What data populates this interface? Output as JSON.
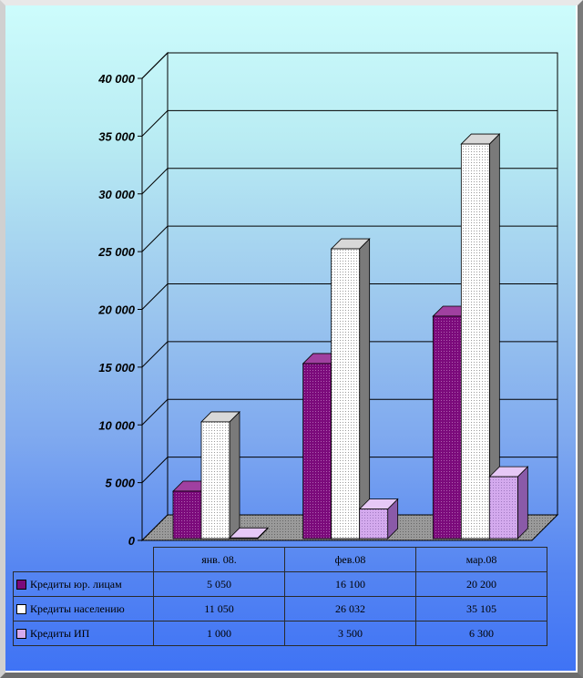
{
  "chart_data": {
    "type": "bar",
    "categories": [
      "янв. 08.",
      "фев.08",
      "мар.08"
    ],
    "series": [
      {
        "name": "Кредиты юр. лицам",
        "values": [
          5050,
          16100,
          20200
        ],
        "labels": [
          "5 050",
          "16 100",
          "20 200"
        ],
        "color": "#7b0a7b"
      },
      {
        "name": "Кредиты населению",
        "values": [
          11050,
          26032,
          35105
        ],
        "labels": [
          "11 050",
          "26 032",
          "35 105"
        ],
        "color": "#ffffff"
      },
      {
        "name": "Кредиты ИП",
        "values": [
          1000,
          3500,
          6300
        ],
        "labels": [
          "1 000",
          "3 500",
          "6 300"
        ],
        "color": "#d4aaee"
      }
    ],
    "ylim": [
      0,
      40000
    ],
    "yticks": [
      "0",
      "5 000",
      "10 000",
      "15 000",
      "20 000",
      "25 000",
      "30 000",
      "35 000",
      "40 000"
    ],
    "grid": true,
    "legend": "data-table"
  }
}
